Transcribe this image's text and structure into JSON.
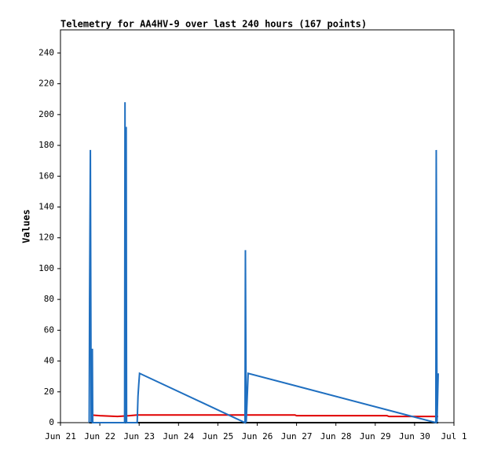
{
  "chart_data": {
    "type": "line",
    "title": "Telemetry for AA4HV-9 over last 240 hours (167 points)",
    "y_label": "Values",
    "xlim": [
      0,
      10
    ],
    "xticks": [
      {
        "value": 0,
        "label": "Jun 21"
      },
      {
        "value": 1,
        "label": "Jun 22"
      },
      {
        "value": 2,
        "label": "Jun 23"
      },
      {
        "value": 3,
        "label": "Jun 24"
      },
      {
        "value": 4,
        "label": "Jun 25"
      },
      {
        "value": 5,
        "label": "Jun 26"
      },
      {
        "value": 6,
        "label": "Jun 27"
      },
      {
        "value": 7,
        "label": "Jun 28"
      },
      {
        "value": 8,
        "label": "Jun 29"
      },
      {
        "value": 9,
        "label": "Jun 30"
      },
      {
        "value": 10,
        "label": "Jul 1"
      }
    ],
    "ylim": [
      0,
      255
    ],
    "yticks": [
      0,
      20,
      40,
      60,
      80,
      100,
      120,
      140,
      160,
      180,
      200,
      220,
      240
    ],
    "series": [
      {
        "color": "#000000",
        "x": [
          0.73,
          9.6
        ],
        "values": [
          0,
          0
        ]
      },
      {
        "color": "#e00000",
        "x": [
          0.77,
          1.0,
          1.45,
          1.75,
          1.95,
          5.96,
          6.0,
          8.3,
          8.35,
          9.6
        ],
        "values": [
          5,
          4.5,
          4,
          4.5,
          5,
          5,
          4.5,
          4.5,
          4,
          4
        ]
      },
      {
        "color": "#1f6fc0",
        "x": [
          0.73,
          0.74,
          0.76,
          0.78,
          0.81,
          0.82,
          1.63,
          1.64,
          1.65,
          1.67,
          1.68,
          1.95,
          1.97,
          1.99,
          2.01,
          4.69,
          4.7,
          4.72,
          4.77,
          9.54,
          9.55,
          9.57,
          9.6
        ],
        "values": [
          0,
          80,
          177,
          0,
          48,
          0,
          0,
          208,
          0,
          192,
          0,
          0,
          17,
          25,
          32,
          0,
          112,
          0,
          32,
          0,
          177,
          0,
          32
        ]
      }
    ]
  }
}
